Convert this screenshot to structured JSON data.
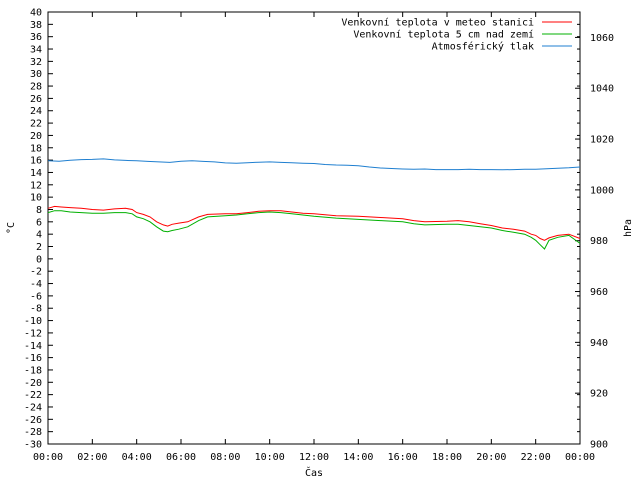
{
  "chart_data": {
    "type": "line",
    "title": "",
    "xlabel": "Čas",
    "ylabel": "°C",
    "y2label": "hPa",
    "xlim": [
      0,
      24
    ],
    "ylim": [
      -30,
      40
    ],
    "y2lim": [
      900,
      1070
    ],
    "grid": false,
    "legend_position": "top-right",
    "x_tick_labels": [
      "00:00",
      "02:00",
      "04:00",
      "06:00",
      "08:00",
      "10:00",
      "12:00",
      "14:00",
      "16:00",
      "18:00",
      "20:00",
      "22:00",
      "00:00"
    ],
    "y_tick_labels": [
      "40",
      "38",
      "36",
      "34",
      "32",
      "30",
      "28",
      "26",
      "24",
      "22",
      "20",
      "18",
      "16",
      "14",
      "12",
      "10",
      "8",
      "6",
      "4",
      "2",
      "0",
      "-2",
      "-4",
      "-6",
      "-8",
      "-10",
      "-12",
      "-14",
      "-16",
      "-18",
      "-20",
      "-22",
      "-24",
      "-26",
      "-28",
      "-30"
    ],
    "y2_tick_labels": [
      "1060",
      "1040",
      "1020",
      "1000",
      "980",
      "960",
      "940",
      "920",
      "900"
    ],
    "series": [
      {
        "name": "Venkovní teplota v meteo stanici",
        "color": "#ff0000",
        "axis": "left",
        "x": [
          0,
          0.3,
          0.6,
          1,
          1.5,
          2,
          2.5,
          3,
          3.5,
          3.8,
          4,
          4.3,
          4.6,
          4.9,
          5.2,
          5.4,
          5.6,
          5.9,
          6.3,
          6.8,
          7.2,
          8,
          8.5,
          9,
          9.5,
          10,
          10.5,
          11,
          11.5,
          12,
          13,
          14,
          15,
          16,
          16.5,
          17,
          18,
          18.5,
          19,
          19.5,
          20,
          20.5,
          21,
          21.5,
          21.8,
          22,
          22.2,
          22.4,
          22.6,
          23,
          23.5,
          24
        ],
        "values": [
          8.2,
          8.5,
          8.4,
          8.3,
          8.2,
          8.0,
          7.9,
          8.1,
          8.2,
          8.0,
          7.5,
          7.2,
          6.8,
          6.0,
          5.5,
          5.3,
          5.6,
          5.8,
          6.0,
          6.8,
          7.2,
          7.3,
          7.3,
          7.5,
          7.7,
          7.8,
          7.8,
          7.6,
          7.4,
          7.3,
          7.0,
          6.9,
          6.7,
          6.5,
          6.2,
          6.0,
          6.1,
          6.2,
          6.0,
          5.7,
          5.4,
          5.0,
          4.8,
          4.5,
          4.0,
          3.8,
          3.3,
          3.0,
          3.4,
          3.8,
          4.0,
          3.3
        ]
      },
      {
        "name": "Venkovní teplota 5 cm nad zemí",
        "color": "#00b000",
        "axis": "left",
        "x": [
          0,
          0.3,
          0.6,
          1,
          1.5,
          2,
          2.5,
          3,
          3.5,
          3.8,
          4,
          4.3,
          4.6,
          4.9,
          5.2,
          5.4,
          5.6,
          5.9,
          6.3,
          6.8,
          7.2,
          8,
          8.5,
          9,
          9.5,
          10,
          10.5,
          11,
          11.5,
          12,
          13,
          14,
          15,
          16,
          16.5,
          17,
          18,
          18.5,
          19,
          19.5,
          20,
          20.5,
          21,
          21.5,
          21.8,
          22,
          22.2,
          22.4,
          22.6,
          23,
          23.5,
          24
        ],
        "values": [
          7.5,
          7.8,
          7.8,
          7.6,
          7.5,
          7.4,
          7.4,
          7.5,
          7.5,
          7.3,
          6.8,
          6.5,
          6.0,
          5.2,
          4.5,
          4.4,
          4.6,
          4.8,
          5.2,
          6.2,
          6.8,
          7.0,
          7.1,
          7.3,
          7.5,
          7.6,
          7.5,
          7.3,
          7.1,
          6.9,
          6.6,
          6.4,
          6.2,
          6.0,
          5.7,
          5.5,
          5.6,
          5.6,
          5.4,
          5.2,
          5.0,
          4.6,
          4.3,
          4.0,
          3.5,
          3.0,
          2.3,
          1.6,
          3.0,
          3.5,
          3.8,
          2.5
        ]
      },
      {
        "name": "Atmosférický tlak",
        "color": "#1f7fd0",
        "axis": "right",
        "x": [
          0,
          0.5,
          1,
          1.5,
          2,
          2.5,
          3,
          3.5,
          4,
          4.5,
          5,
          5.5,
          6,
          6.5,
          7,
          7.5,
          8,
          8.5,
          9,
          9.5,
          10,
          10.5,
          11,
          11.5,
          12,
          12.5,
          13,
          13.5,
          14,
          14.5,
          15,
          15.5,
          16,
          16.5,
          17,
          17.5,
          18,
          18.5,
          19,
          19.5,
          20,
          20.5,
          21,
          21.5,
          22,
          22.5,
          23,
          23.5,
          24
        ],
        "values": [
          1011.5,
          1011.3,
          1011.7,
          1011.9,
          1012.0,
          1012.2,
          1011.8,
          1011.6,
          1011.5,
          1011.2,
          1011.0,
          1010.8,
          1011.3,
          1011.5,
          1011.2,
          1011.0,
          1010.6,
          1010.5,
          1010.7,
          1010.9,
          1011.0,
          1010.8,
          1010.7,
          1010.5,
          1010.4,
          1010.0,
          1009.8,
          1009.7,
          1009.5,
          1009.0,
          1008.6,
          1008.4,
          1008.2,
          1008.1,
          1008.2,
          1008.0,
          1008.0,
          1008.0,
          1008.1,
          1008.0,
          1008.0,
          1007.9,
          1008.0,
          1008.1,
          1008.1,
          1008.3,
          1008.5,
          1008.7,
          1009.0
        ]
      }
    ]
  }
}
